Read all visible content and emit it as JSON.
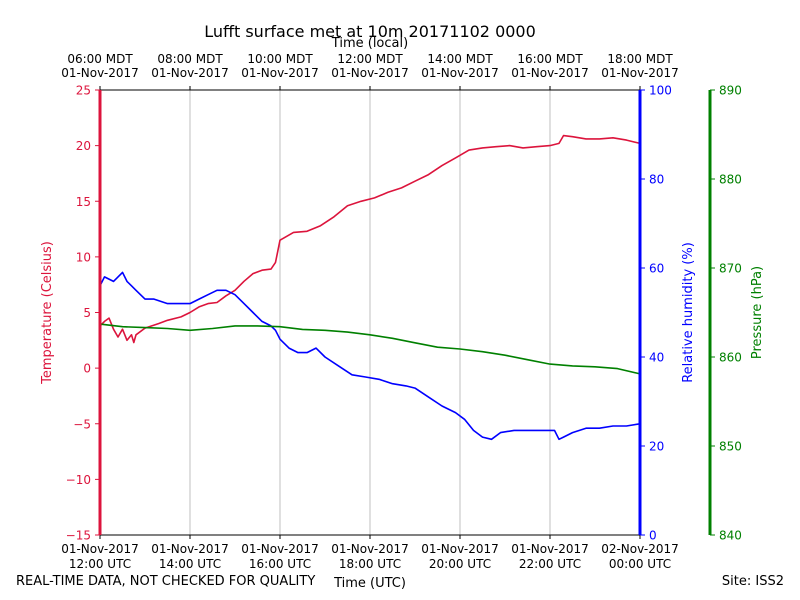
{
  "chart_data": {
    "type": "line",
    "title": "Lufft surface met at 10m 20171102 0000",
    "xlabel_bottom": "Time (UTC)",
    "xlabel_top": "Time (local)",
    "x_range_utc_hours": [
      12,
      24
    ],
    "x_ticks_bottom": [
      {
        "h": 12,
        "line1": "01-Nov-2017",
        "line2": "12:00 UTC"
      },
      {
        "h": 14,
        "line1": "01-Nov-2017",
        "line2": "14:00 UTC"
      },
      {
        "h": 16,
        "line1": "01-Nov-2017",
        "line2": "16:00 UTC"
      },
      {
        "h": 18,
        "line1": "01-Nov-2017",
        "line2": "18:00 UTC"
      },
      {
        "h": 20,
        "line1": "01-Nov-2017",
        "line2": "20:00 UTC"
      },
      {
        "h": 22,
        "line1": "01-Nov-2017",
        "line2": "22:00 UTC"
      },
      {
        "h": 24,
        "line1": "02-Nov-2017",
        "line2": "00:00 UTC"
      }
    ],
    "x_ticks_top": [
      {
        "h": 12,
        "line1": "06:00 MDT",
        "line2": "01-Nov-2017"
      },
      {
        "h": 14,
        "line1": "08:00 MDT",
        "line2": "01-Nov-2017"
      },
      {
        "h": 16,
        "line1": "10:00 MDT",
        "line2": "01-Nov-2017"
      },
      {
        "h": 18,
        "line1": "12:00 MDT",
        "line2": "01-Nov-2017"
      },
      {
        "h": 20,
        "line1": "14:00 MDT",
        "line2": "01-Nov-2017"
      },
      {
        "h": 22,
        "line1": "16:00 MDT",
        "line2": "01-Nov-2017"
      },
      {
        "h": 24,
        "line1": "18:00 MDT",
        "line2": "01-Nov-2017"
      }
    ],
    "axes": {
      "temperature": {
        "label": "Temperature (Celsius)",
        "range": [
          -15,
          25
        ],
        "ticks": [
          "−15",
          "−10",
          "−5",
          "0",
          "5",
          "10",
          "15",
          "20",
          "25"
        ],
        "tick_values": [
          -15,
          -10,
          -5,
          0,
          5,
          10,
          15,
          20,
          25
        ],
        "color": "#dc143c"
      },
      "humidity": {
        "label": "Relative humidity (%)",
        "range": [
          0,
          100
        ],
        "ticks": [
          "0",
          "20",
          "40",
          "60",
          "80",
          "100"
        ],
        "tick_values": [
          0,
          20,
          40,
          60,
          80,
          100
        ],
        "color": "#0000ff"
      },
      "pressure": {
        "label": "Pressure (hPa)",
        "range": [
          840,
          890
        ],
        "ticks": [
          "840",
          "850",
          "860",
          "870",
          "880",
          "890"
        ],
        "tick_values": [
          840,
          850,
          860,
          870,
          880,
          890
        ],
        "color": "#008000"
      }
    },
    "grid": "vertical",
    "series": [
      {
        "name": "Temperature",
        "axis": "temperature",
        "color": "#dc143c",
        "x": [
          12.0,
          12.1,
          12.2,
          12.3,
          12.4,
          12.5,
          12.6,
          12.7,
          12.75,
          12.8,
          13.0,
          13.3,
          13.5,
          13.8,
          14.0,
          14.2,
          14.4,
          14.6,
          14.8,
          15.0,
          15.2,
          15.4,
          15.6,
          15.8,
          15.9,
          16.0,
          16.3,
          16.6,
          16.9,
          17.2,
          17.5,
          17.8,
          18.1,
          18.4,
          18.7,
          19.0,
          19.3,
          19.6,
          19.9,
          20.2,
          20.5,
          20.8,
          21.1,
          21.4,
          21.7,
          22.0,
          22.2,
          22.3,
          22.5,
          22.8,
          23.1,
          23.4,
          23.7,
          24.0
        ],
        "values": [
          3.8,
          4.2,
          4.5,
          3.5,
          2.8,
          3.5,
          2.5,
          3.0,
          2.3,
          3.0,
          3.6,
          4.0,
          4.3,
          4.6,
          5.0,
          5.5,
          5.8,
          5.9,
          6.5,
          7.0,
          7.8,
          8.5,
          8.8,
          8.9,
          9.5,
          11.5,
          12.2,
          12.3,
          12.8,
          13.6,
          14.6,
          15.0,
          15.3,
          15.8,
          16.2,
          16.8,
          17.4,
          18.2,
          18.9,
          19.6,
          19.8,
          19.9,
          20.0,
          19.8,
          19.9,
          20.0,
          20.2,
          20.9,
          20.8,
          20.6,
          20.6,
          20.7,
          20.5,
          20.2
        ]
      },
      {
        "name": "Relative humidity",
        "axis": "humidity",
        "color": "#0000ff",
        "x": [
          12.0,
          12.1,
          12.3,
          12.4,
          12.5,
          12.6,
          12.7,
          12.8,
          13.0,
          13.2,
          13.5,
          13.8,
          14.0,
          14.2,
          14.4,
          14.6,
          14.8,
          15.0,
          15.2,
          15.4,
          15.6,
          15.8,
          15.9,
          16.0,
          16.2,
          16.4,
          16.6,
          16.8,
          17.0,
          17.3,
          17.6,
          17.9,
          18.2,
          18.5,
          18.8,
          19.0,
          19.3,
          19.6,
          19.9,
          20.1,
          20.3,
          20.5,
          20.7,
          20.9,
          21.2,
          21.5,
          21.8,
          22.0,
          22.1,
          22.2,
          22.3,
          22.5,
          22.8,
          23.1,
          23.4,
          23.7,
          24.0
        ],
        "values": [
          56,
          58,
          57,
          58,
          59,
          57,
          56,
          55,
          53,
          53,
          52,
          52,
          52,
          53,
          54,
          55,
          55,
          54,
          52,
          50,
          48,
          47,
          46,
          44,
          42,
          41,
          41,
          42,
          40,
          38,
          36,
          35.5,
          35,
          34,
          33.5,
          33,
          31,
          29,
          27.5,
          26,
          23.5,
          22,
          21.5,
          23,
          23.5,
          23.5,
          23.5,
          23.5,
          23.5,
          21.5,
          22,
          23,
          24,
          24,
          24.5,
          24.5,
          25
        ]
      },
      {
        "name": "Pressure",
        "axis": "pressure",
        "color": "#008000",
        "x": [
          12.0,
          12.5,
          13.0,
          13.5,
          14.0,
          14.5,
          15.0,
          15.5,
          16.0,
          16.5,
          17.0,
          17.5,
          18.0,
          18.5,
          19.0,
          19.5,
          20.0,
          20.5,
          21.0,
          21.5,
          22.0,
          22.5,
          23.0,
          23.5,
          24.0
        ],
        "values": [
          863.7,
          863.4,
          863.3,
          863.2,
          863.0,
          863.2,
          863.5,
          863.5,
          863.4,
          863.1,
          863.0,
          862.8,
          862.5,
          862.1,
          861.6,
          861.1,
          860.9,
          860.6,
          860.2,
          859.7,
          859.2,
          859.0,
          858.9,
          858.7,
          858.1
        ]
      }
    ]
  },
  "footer": {
    "disclaimer": "REAL-TIME DATA, NOT CHECKED FOR QUALITY",
    "site": "Site: ISS2"
  }
}
